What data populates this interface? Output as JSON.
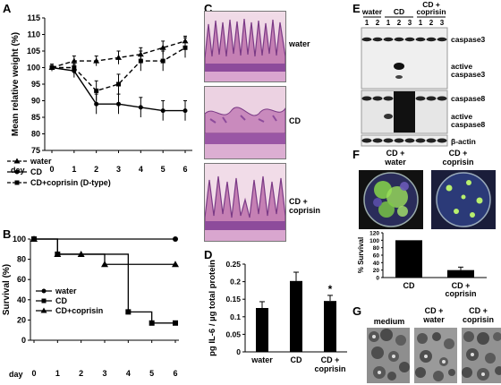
{
  "panels": {
    "A": {
      "letter": "A",
      "chart_data": {
        "type": "line",
        "ylabel": "Mean relative weight (%)",
        "xlabel": "day",
        "ylim": [
          75,
          115
        ],
        "yticks": [
          75,
          80,
          85,
          90,
          95,
          100,
          105,
          110,
          115
        ],
        "x": [
          0,
          1,
          2,
          3,
          4,
          5,
          6
        ],
        "legend_placement": "bottom-left",
        "series": [
          {
            "name": "water",
            "values": [
              100,
              102,
              102,
              103,
              104,
              106,
              108
            ],
            "errors": [
              1,
              1.5,
              1.5,
              2,
              2,
              2,
              1.5
            ],
            "marker": "triangle",
            "dash": "dashed"
          },
          {
            "name": "CD",
            "values": [
              100,
              99,
              89,
              89,
              88,
              87,
              87
            ],
            "errors": [
              1,
              2,
              3,
              3,
              3,
              3,
              3
            ],
            "marker": "circle",
            "dash": "solid"
          },
          {
            "name": "CD+coprisin (D-type)",
            "values": [
              100,
              100,
              93,
              95,
              102,
              102,
              106
            ],
            "errors": [
              1,
              2,
              3,
              3,
              3,
              3,
              3
            ],
            "marker": "square",
            "dash": "dashed"
          }
        ]
      }
    },
    "B": {
      "letter": "B",
      "chart_data": {
        "type": "line",
        "ylabel": "Survival (%)",
        "xlabel": "day",
        "ylim": [
          0,
          100
        ],
        "yticks": [
          0,
          20,
          40,
          60,
          80,
          100
        ],
        "xticks": [
          0,
          1,
          2,
          3,
          4,
          5,
          6
        ],
        "legend_placement": "bottom-left",
        "series": [
          {
            "name": "water",
            "marker": "circle",
            "points": [
              [
                0,
                100
              ],
              [
                6,
                100
              ]
            ]
          },
          {
            "name": "CD",
            "marker": "square",
            "points": [
              [
                0,
                100
              ],
              [
                1,
                85
              ],
              [
                4,
                28
              ],
              [
                5,
                17
              ],
              [
                6,
                17
              ]
            ]
          },
          {
            "name": "CD+coprisin",
            "marker": "triangle",
            "points": [
              [
                0,
                100
              ],
              [
                1,
                85
              ],
              [
                2,
                85
              ],
              [
                3,
                75
              ],
              [
                6,
                75
              ]
            ]
          }
        ]
      }
    },
    "C": {
      "letter": "C",
      "labels": [
        "water",
        "CD",
        "CD +\ncoprisin"
      ]
    },
    "D": {
      "letter": "D",
      "chart_data": {
        "type": "bar",
        "ylabel": "pg IL-6 / µg total protein",
        "categories": [
          "water",
          "CD",
          "CD +\ncoprisin"
        ],
        "values": [
          0.125,
          0.202,
          0.145
        ],
        "errors": [
          0.018,
          0.025,
          0.016
        ],
        "ylim": [
          0,
          0.25
        ],
        "yticks": [
          "0",
          "0.05",
          "0.1",
          "0.15",
          "0.2",
          "0.25"
        ],
        "annotation": "*"
      }
    },
    "E": {
      "letter": "E",
      "groups": [
        "water",
        "CD",
        "CD +\ncoprisin"
      ],
      "lanes": [
        "1",
        "2",
        "1",
        "2",
        "3",
        "1",
        "2",
        "3"
      ],
      "bands": [
        "caspase3",
        "active\ncaspase3",
        "caspase8",
        "active\ncaspase8",
        "β-actin"
      ]
    },
    "F": {
      "letter": "F",
      "plates": [
        "CD +\nwater",
        "CD +\ncoprisin"
      ],
      "chart_data": {
        "type": "bar",
        "ylabel": "% Survival",
        "categories": [
          "CD",
          "CD +\ncoprisin"
        ],
        "values": [
          100,
          20
        ],
        "errors": [
          0,
          8
        ],
        "ylim": [
          0,
          120
        ],
        "yticks": [
          "0",
          "20",
          "40",
          "60",
          "80",
          "100",
          "120"
        ]
      }
    },
    "G": {
      "letter": "G",
      "labels": [
        "medium",
        "CD +\nwater",
        "CD +\ncoprisin"
      ]
    }
  }
}
